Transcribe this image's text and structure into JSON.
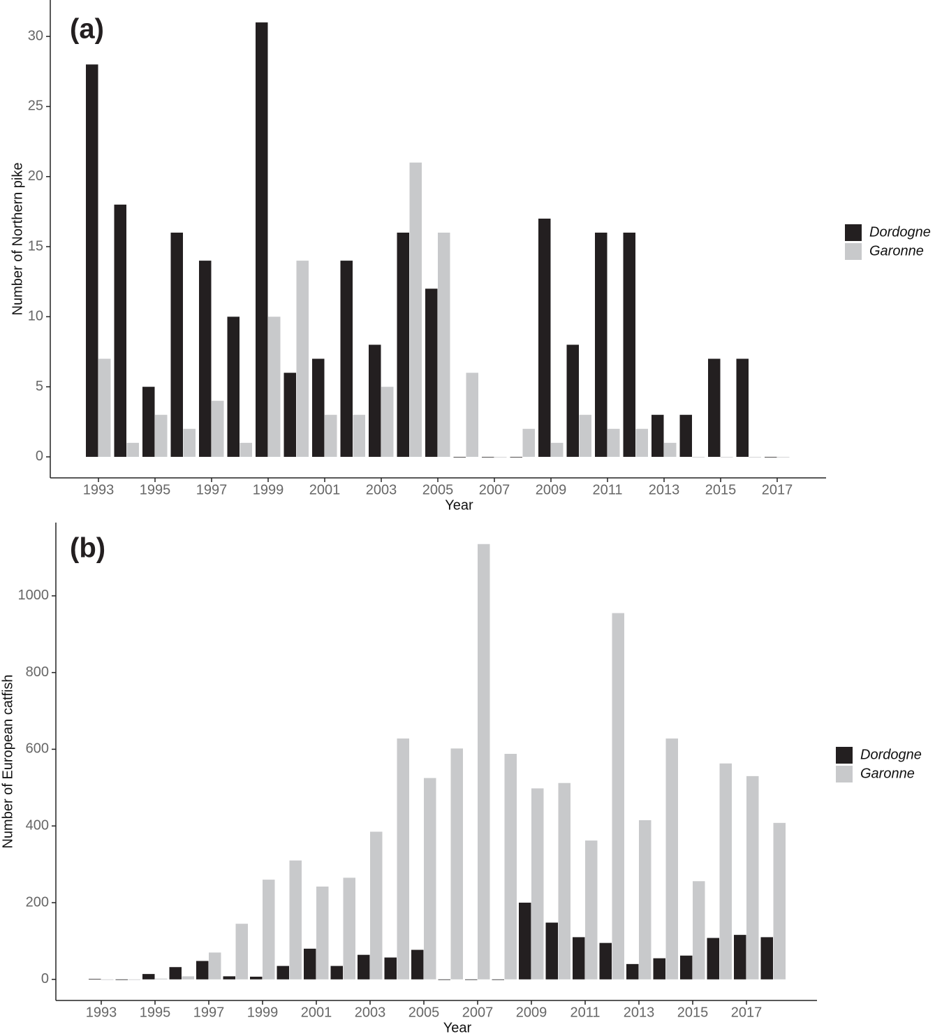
{
  "chart_data": [
    {
      "type": "bar",
      "label": "(a)",
      "xlabel": "Year",
      "ylabel": "Number of Northern pike",
      "categories": [
        "1993",
        null,
        "1995",
        null,
        "1997",
        null,
        "1999",
        null,
        "2001",
        null,
        "2003",
        null,
        "2005",
        null,
        "2007",
        null,
        "2009",
        null,
        "2011",
        null,
        "2013",
        null,
        "2015",
        null,
        "2017"
      ],
      "series": [
        {
          "name": "Dordogne",
          "color": "#231f20",
          "values": [
            28,
            18,
            5,
            16,
            14,
            10,
            31,
            6,
            7,
            14,
            8,
            16,
            12,
            0,
            0,
            0,
            17,
            8,
            16,
            16,
            3,
            3,
            7,
            7,
            0
          ]
        },
        {
          "name": "Garonne",
          "color": "#c8c9cb",
          "values": [
            7,
            1,
            3,
            2,
            4,
            1,
            10,
            14,
            3,
            3,
            5,
            21,
            16,
            6,
            0,
            2,
            1,
            3,
            2,
            2,
            1,
            0,
            0,
            0,
            0
          ]
        }
      ],
      "ylim": [
        -1.5,
        32.6
      ],
      "yticks": [
        0,
        5,
        10,
        15,
        20,
        25,
        30
      ],
      "legend": "right"
    },
    {
      "type": "bar",
      "label": "(b)",
      "xlabel": "Year",
      "ylabel": "Number of European catfish",
      "categories": [
        "1993",
        null,
        "1995",
        null,
        "1997",
        null,
        "1999",
        null,
        "2001",
        null,
        "2003",
        null,
        "2005",
        null,
        "2007",
        null,
        "2009",
        null,
        "2011",
        null,
        "2013",
        null,
        "2015",
        null,
        "2017",
        null
      ],
      "series": [
        {
          "name": "Dordogne",
          "color": "#231f20",
          "values": [
            1,
            0,
            14,
            32,
            48,
            8,
            7,
            35,
            80,
            35,
            64,
            57,
            77,
            0,
            0,
            0,
            200,
            148,
            110,
            95,
            40,
            55,
            62,
            108,
            116,
            110
          ]
        },
        {
          "name": "Garonne",
          "color": "#c8c9cb",
          "values": [
            0,
            0,
            2,
            8,
            70,
            145,
            260,
            310,
            242,
            265,
            385,
            628,
            525,
            602,
            1135,
            588,
            498,
            512,
            362,
            955,
            415,
            628,
            256,
            563,
            530,
            408
          ]
        }
      ],
      "ylim": [
        -55,
        1191
      ],
      "yticks": [
        0,
        200,
        400,
        600,
        800,
        1000
      ],
      "legend": "right"
    }
  ]
}
